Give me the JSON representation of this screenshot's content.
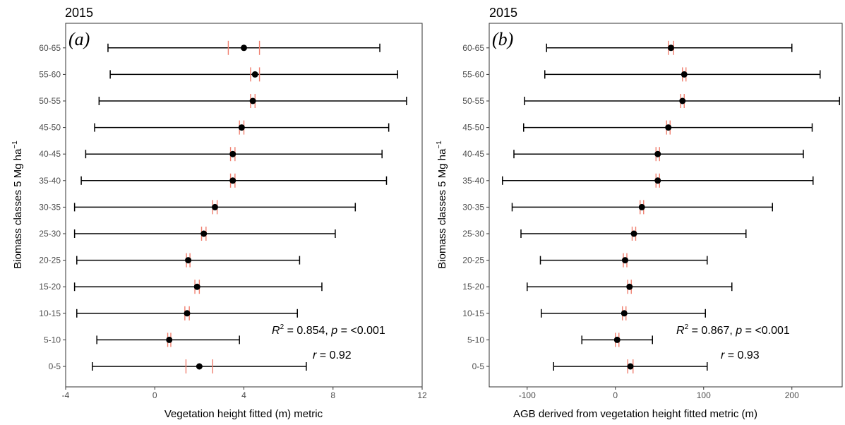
{
  "chart_data": [
    {
      "type": "errorbar",
      "title": "2015",
      "panel_label": "(a)",
      "xlabel": "Vegetation height fitted (m) metric",
      "ylabel": "Biomass classes 5 Mg ha",
      "ylabel_sup": "−1",
      "xlim": [
        -4,
        12
      ],
      "xticks": [
        -4,
        0,
        4,
        8,
        12
      ],
      "categories": [
        "0-5",
        "5-10",
        "10-15",
        "15-20",
        "20-25",
        "25-30",
        "30-35",
        "35-40",
        "40-45",
        "45-50",
        "50-55",
        "55-60",
        "60-65"
      ],
      "mean": [
        2.0,
        0.65,
        1.45,
        1.9,
        1.5,
        2.2,
        2.7,
        3.5,
        3.5,
        3.9,
        4.4,
        4.5,
        4.0
      ],
      "sd_low": [
        -2.8,
        -2.6,
        -3.5,
        -3.6,
        -3.5,
        -3.6,
        -3.6,
        -3.3,
        -3.1,
        -2.7,
        -2.5,
        -2.0,
        -2.1
      ],
      "sd_high": [
        6.8,
        3.8,
        6.4,
        7.5,
        6.5,
        8.1,
        9.0,
        10.4,
        10.2,
        10.5,
        11.3,
        10.9,
        10.1
      ],
      "ci_low": [
        1.4,
        0.58,
        1.35,
        1.8,
        1.42,
        2.1,
        2.6,
        3.4,
        3.4,
        3.8,
        4.3,
        4.3,
        3.3
      ],
      "ci_high": [
        2.6,
        0.72,
        1.55,
        2.0,
        1.58,
        2.3,
        2.8,
        3.6,
        3.6,
        4.0,
        4.5,
        4.7,
        4.7
      ],
      "stats": {
        "r2_label": "R",
        "r2_sup": "2",
        "r2_value": " = 0.854,  ",
        "p_label": "p",
        "p_value": " = <0.001",
        "r_label": "r",
        "r_value": " = 0.92"
      }
    },
    {
      "type": "errorbar",
      "title": "2015",
      "panel_label": "(b)",
      "xlabel": "AGB derived from vegetation height fitted metric (m)",
      "ylabel": "Biomass classes 5 Mg ha",
      "ylabel_sup": "−1",
      "xlim": [
        -143,
        257
      ],
      "xticks": [
        -100,
        0,
        100,
        200
      ],
      "categories": [
        "0-5",
        "5-10",
        "10-15",
        "15-20",
        "20-25",
        "25-30",
        "30-35",
        "35-40",
        "40-45",
        "45-50",
        "50-55",
        "55-60",
        "60-65"
      ],
      "mean": [
        17,
        2,
        10,
        16,
        11,
        21,
        30,
        48,
        48,
        60,
        76,
        78,
        63
      ],
      "sd_low": [
        -70,
        -38,
        -84,
        -100,
        -85,
        -107,
        -117,
        -128,
        -115,
        -104,
        -103,
        -80,
        -78
      ],
      "sd_high": [
        104,
        42,
        102,
        132,
        104,
        148,
        178,
        224,
        213,
        223,
        254,
        232,
        200
      ],
      "ci_low": [
        14,
        0,
        8,
        14,
        9,
        19,
        28,
        46,
        46,
        58,
        74,
        76,
        60
      ],
      "ci_high": [
        20,
        4,
        12,
        18,
        13,
        23,
        32,
        50,
        50,
        62,
        78,
        80,
        66
      ],
      "stats": {
        "r2_label": "R",
        "r2_sup": "2",
        "r2_value": " = 0.867,  ",
        "p_label": "p",
        "p_value": " = <0.001",
        "r_label": "r",
        "r_value": " = 0.93"
      }
    }
  ],
  "colors": {
    "ci_tick": "#f08070",
    "bar": "#000000",
    "point": "#000000",
    "axis": "#333333"
  }
}
